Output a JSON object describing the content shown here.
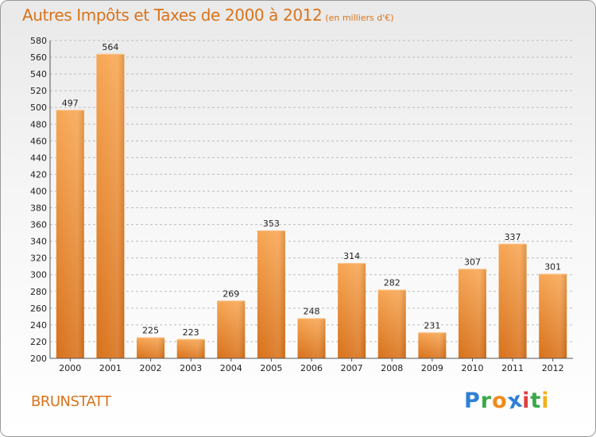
{
  "header": {
    "title": "Autres Impôts et Taxes de 2000 à 2012",
    "subtitle": "(en milliers d'€)"
  },
  "footer": {
    "town": "BRUNSTATT",
    "logo_letters": [
      {
        "ch": "P",
        "color": "#2f7fd6"
      },
      {
        "ch": "r",
        "color": "#3aa84a"
      },
      {
        "ch": "o",
        "color": "#f08a1c"
      },
      {
        "ch": "x",
        "color": "#2f7fd6"
      },
      {
        "ch": "i",
        "color": "#e04040"
      },
      {
        "ch": "t",
        "color": "#3aa84a"
      },
      {
        "ch": "i",
        "color": "#f0b21c"
      }
    ]
  },
  "chart_data": {
    "type": "bar",
    "categories": [
      "2000",
      "2001",
      "2002",
      "2003",
      "2004",
      "2005",
      "2006",
      "2007",
      "2008",
      "2009",
      "2010",
      "2011",
      "2012"
    ],
    "values": [
      497,
      564,
      225,
      223,
      269,
      353,
      248,
      314,
      282,
      231,
      307,
      337,
      301
    ],
    "title": "Autres Impôts et Taxes de 2000 à 2012",
    "xlabel": "",
    "ylabel": "",
    "ylim": [
      200,
      580
    ],
    "ytick_step": 20,
    "grid": true,
    "legend": "none",
    "colors": {
      "bar_light": "#f7a653",
      "bar_dark": "#d8711a",
      "grid": "#bdbdbd",
      "axis": "#555555"
    }
  }
}
